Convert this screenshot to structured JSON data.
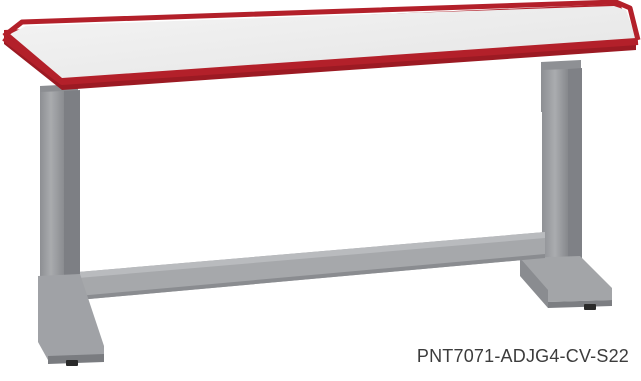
{
  "product": {
    "sku": "PNT7071-ADJG4-CV-S22",
    "colors": {
      "top_surface": "#ececec",
      "edge_band": "#b3202a",
      "frame": "#9a9ca0",
      "frame_shadow": "#7e8085",
      "frame_highlight": "#b8babd",
      "glide": "#2a2a2a"
    }
  }
}
